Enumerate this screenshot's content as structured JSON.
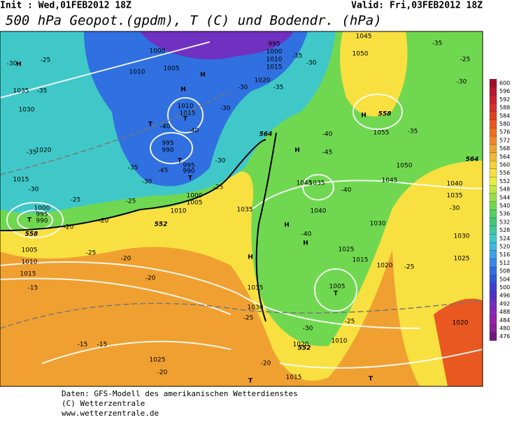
{
  "header": {
    "init": "Init : Wed,01FEB2012 18Z",
    "valid": "Valid: Fri,03FEB2012 18Z",
    "title": "500 hPa Geopot.(gpdm), T (C) und Bodendr. (hPa)"
  },
  "colorbar": {
    "ticks": [
      600,
      596,
      592,
      588,
      584,
      580,
      576,
      572,
      568,
      564,
      560,
      556,
      552,
      548,
      544,
      540,
      536,
      532,
      528,
      524,
      520,
      516,
      512,
      508,
      504,
      500,
      496,
      492,
      488,
      484,
      480,
      476
    ],
    "colors": [
      "#a0102a",
      "#b81830",
      "#c82030",
      "#d83028",
      "#e04020",
      "#e85820",
      "#f07020",
      "#f08828",
      "#f0a030",
      "#f0b830",
      "#f8d038",
      "#f8e040",
      "#e8f040",
      "#c0e840",
      "#98e048",
      "#70d850",
      "#50d060",
      "#40c878",
      "#40c8a0",
      "#40c8c8",
      "#40b8e0",
      "#40a0e8",
      "#3888e8",
      "#3070e0",
      "#3058d8",
      "#4040d0",
      "#5030c8",
      "#7030c0",
      "#8828b8",
      "#9820a8",
      "#882098",
      "#701880"
    ]
  },
  "map": {
    "labels": [
      "H",
      "H",
      "H",
      "H",
      "H",
      "H",
      "H",
      "H",
      "T",
      "T",
      "T",
      "T",
      "T",
      "T",
      "T",
      "T",
      "1035",
      "1030",
      "1020",
      "1015",
      "1000",
      "995",
      "990",
      "1005",
      "1010",
      "1015",
      "1000",
      "1010",
      "1005",
      "1015",
      "1010",
      "995",
      "990",
      "995",
      "990",
      "1000",
      "1005",
      "1010",
      "1035",
      "1045",
      "1035",
      "1040",
      "1030",
      "1045",
      "1050",
      "1050",
      "1055",
      "1040",
      "1035",
      "1030",
      "1025",
      "1025",
      "1015",
      "1020",
      "1005",
      "1035",
      "1030",
      "1020",
      "1010",
      "1025",
      "1015",
      "1020",
      "1045",
      "1020",
      "1015",
      "1010",
      "1000",
      "995",
      "-30",
      "-25",
      "-35",
      "-35",
      "-30",
      "-25",
      "-20",
      "-20",
      "-25",
      "-20",
      "-15",
      "-15",
      "-20",
      "-25",
      "-30",
      "-35",
      "-40",
      "-40",
      "-45",
      "-30",
      "-30",
      "-25",
      "-30",
      "-35",
      "-40",
      "-45",
      "-40",
      "-40",
      "-35",
      "-30",
      "-35",
      "-35",
      "-25",
      "-30",
      "-30",
      "-25",
      "-25",
      "-30",
      "-25",
      "-20",
      "-20",
      "-15",
      "564",
      "552",
      "558",
      "564",
      "552",
      "558"
    ]
  },
  "footer": {
    "lines": [
      "Daten: GFS-Modell des amerikanischen Wetterdienstes",
      "(C) Wetterzentrale",
      "www.wetterzentrale.de"
    ]
  }
}
